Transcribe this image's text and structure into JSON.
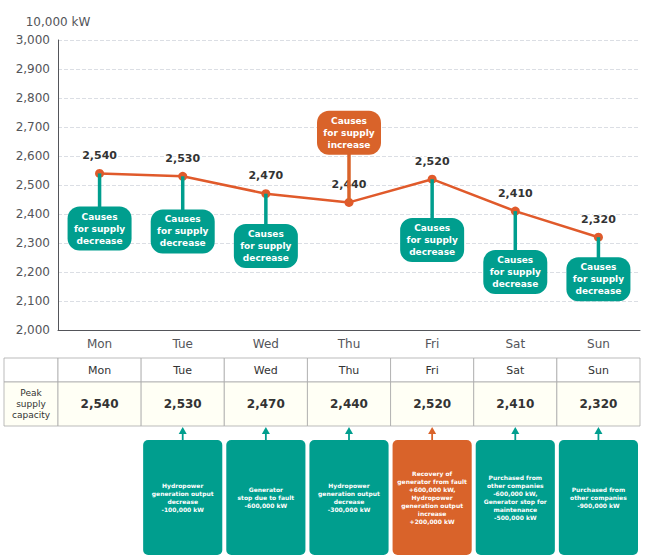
{
  "chart_data": {
    "type": "line",
    "categories": [
      "Mon",
      "Tue",
      "Wed",
      "Thu",
      "Fri",
      "Sat",
      "Sun"
    ],
    "values": [
      2540,
      2530,
      2470,
      2440,
      2520,
      2410,
      2320
    ],
    "value_labels": [
      "2,540",
      "2,530",
      "2,470",
      "2,440",
      "2,520",
      "2,410",
      "2,320"
    ],
    "data_labels": true,
    "color": "#e05a2b",
    "ylim": [
      2000,
      3000
    ],
    "yticks": [
      {
        "value": 2000,
        "label": "2,000"
      },
      {
        "value": 2100,
        "label": "2,100"
      },
      {
        "value": 2200,
        "label": "2,200"
      },
      {
        "value": 2300,
        "label": "2,300"
      },
      {
        "value": 2400,
        "label": "2,400"
      },
      {
        "value": 2500,
        "label": "2,500"
      },
      {
        "value": 2600,
        "label": "2,600"
      },
      {
        "value": 2700,
        "label": "2,700"
      },
      {
        "value": 2800,
        "label": "2,800"
      },
      {
        "value": 2900,
        "label": "2,900"
      },
      {
        "value": 3000,
        "label": "3,000"
      }
    ],
    "ylabel": "10,000 kW",
    "grid": true,
    "annotations": [
      {
        "x": "Mon",
        "y": 2350,
        "text": "Causes\nfor supply\ndecrease",
        "color": "#009e8e"
      },
      {
        "x": "Tue",
        "y": 2340,
        "text": "Causes\nfor supply\ndecrease",
        "color": "#009e8e"
      },
      {
        "x": "Wed",
        "y": 2290,
        "text": "Causes\nfor supply\ndecrease",
        "color": "#009e8e"
      },
      {
        "x": "Thu",
        "y": 2680,
        "text": "Causes\nfor supply\nincrease",
        "color": "#d9632a"
      },
      {
        "x": "Fri",
        "y": 2310,
        "text": "Causes\nfor supply\ndecrease",
        "color": "#009e8e"
      },
      {
        "x": "Sat",
        "y": 2200,
        "text": "Causes\nfor supply\ndecrease",
        "color": "#009e8e"
      },
      {
        "x": "Sun",
        "y": 2175,
        "text": "Causes\nfor supply\ndecrease",
        "color": "#009e8e"
      }
    ],
    "table": {
      "row_label": "Peak\nsupply\ncapacity",
      "cells": [
        "2,540",
        "2,530",
        "2,470",
        "2,440",
        "2,520",
        "2,410",
        "2,320"
      ]
    },
    "notes": [
      {
        "x": "Tue",
        "text": "Hydropower\ngeneration output\ndecrease\n-100,000 kW",
        "color": "#009e8e"
      },
      {
        "x": "Wed",
        "text": "Generator\nstop due to fault\n-600,000 kW",
        "color": "#009e8e"
      },
      {
        "x": "Thu",
        "text": "Hydropower\ngeneration output\ndecrease\n-300,000 kW",
        "color": "#009e8e"
      },
      {
        "x": "Fri",
        "text": "Recovery of\ngenerator from fault\n+600,000 kW,\nHydropower\ngeneration output\nincrease\n+200,000 kW",
        "color": "#d9632a"
      },
      {
        "x": "Sat",
        "text": "Purchased from\nother companies\n-600,000 kW,\nGenerator stop for\nmaintenance\n-500,000 kW",
        "color": "#009e8e"
      },
      {
        "x": "Sun",
        "text": "Purchased from\nother companies\n-900,000 kW",
        "color": "#009e8e"
      }
    ]
  }
}
